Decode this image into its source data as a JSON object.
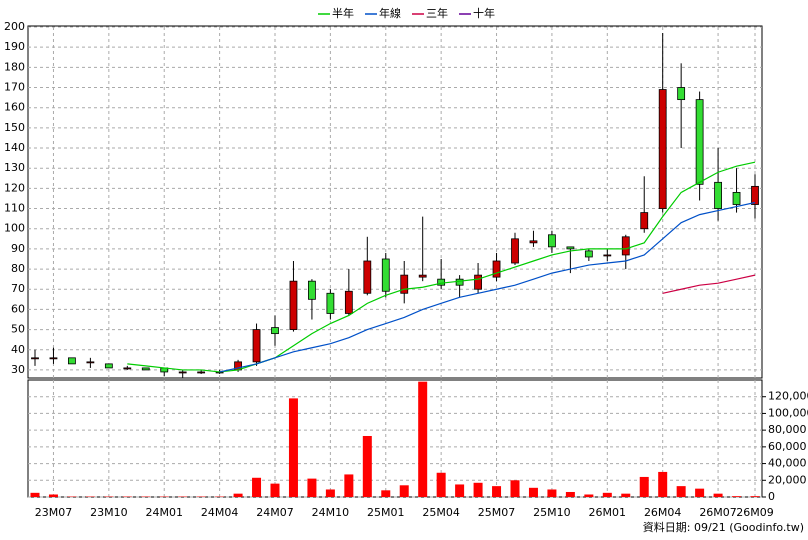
{
  "chart_data": [
    {
      "type": "candlestick",
      "legend": "top",
      "grid": true,
      "up_color": "#cc0000",
      "down_color": "#33dd33",
      "categories": [
        null,
        "23M07",
        null,
        null,
        "23M10",
        null,
        null,
        "24M01",
        null,
        null,
        "24M04",
        null,
        null,
        "24M07",
        null,
        null,
        "24M10",
        null,
        null,
        "25M01",
        null,
        null,
        "25M04",
        null,
        null,
        "25M07",
        null,
        null,
        "25M10",
        null,
        null,
        "26M01",
        null,
        null,
        "26M04",
        null,
        null,
        "26M07",
        null,
        "26M09"
      ],
      "open": [
        36,
        36,
        36,
        34,
        33,
        31,
        31,
        31,
        29,
        29,
        29,
        30,
        34,
        51,
        50,
        74,
        68,
        58,
        68,
        85,
        68,
        76,
        75,
        75,
        70,
        76,
        83,
        93,
        97,
        91,
        89,
        87,
        87,
        100,
        110,
        170,
        164,
        123,
        118,
        112
      ],
      "high": [
        40,
        41,
        36,
        36,
        33,
        32,
        31,
        31,
        30,
        30,
        30,
        35,
        53,
        57,
        84,
        75,
        70,
        80,
        96,
        88,
        84,
        106,
        85,
        77,
        83,
        88,
        98,
        99,
        99,
        91,
        90,
        90,
        97,
        126,
        197,
        182,
        168,
        140,
        130,
        127
      ],
      "low": [
        32,
        33,
        33,
        31,
        31,
        30,
        30,
        27,
        26,
        28,
        28,
        29,
        32,
        42,
        49,
        55,
        55,
        57,
        67,
        66,
        63,
        74,
        70,
        66,
        68,
        74,
        82,
        91,
        88,
        78,
        84,
        84,
        80,
        98,
        108,
        140,
        114,
        104,
        108,
        105
      ],
      "close": [
        36,
        36,
        33,
        34,
        31,
        31,
        30,
        29,
        29,
        29,
        29,
        34,
        50,
        48,
        74,
        65,
        58,
        69,
        84,
        69,
        77,
        77,
        72,
        72,
        77,
        84,
        95,
        94,
        91,
        90,
        86,
        87,
        96,
        108,
        169,
        164,
        122,
        110,
        112,
        121
      ],
      "series": [
        {
          "name": "半年",
          "color": "#00cc00",
          "values": [
            null,
            null,
            null,
            null,
            null,
            33,
            32,
            31,
            30,
            30,
            29,
            30,
            33,
            36,
            42,
            48,
            53,
            57,
            63,
            67,
            70,
            71,
            73,
            74,
            75,
            78,
            81,
            84,
            87,
            89,
            90,
            90,
            90,
            93,
            106,
            118,
            123,
            128,
            131,
            133
          ]
        },
        {
          "name": "年線",
          "color": "#0050c8",
          "values": [
            null,
            null,
            null,
            null,
            null,
            null,
            null,
            null,
            null,
            null,
            29,
            31,
            33,
            36,
            39,
            41,
            43,
            46,
            50,
            53,
            56,
            60,
            63,
            66,
            68,
            70,
            72,
            75,
            78,
            80,
            82,
            83,
            84,
            87,
            95,
            103,
            107,
            109,
            111,
            113
          ]
        },
        {
          "name": "三年",
          "color": "#cc0044",
          "values": [
            null,
            null,
            null,
            null,
            null,
            null,
            null,
            null,
            null,
            null,
            null,
            null,
            null,
            null,
            null,
            null,
            null,
            null,
            null,
            null,
            null,
            null,
            null,
            null,
            null,
            null,
            null,
            null,
            null,
            null,
            null,
            null,
            null,
            null,
            68,
            70,
            72,
            73,
            75,
            77
          ]
        },
        {
          "name": "十年",
          "color": "#660099",
          "values": [
            null,
            null,
            null,
            null,
            null,
            null,
            null,
            null,
            null,
            null,
            null,
            null,
            null,
            null,
            null,
            null,
            null,
            null,
            null,
            null,
            null,
            null,
            null,
            null,
            null,
            null,
            null,
            null,
            null,
            null,
            null,
            null,
            null,
            null,
            null,
            null,
            null,
            null,
            null,
            null
          ]
        }
      ],
      "ylim": [
        26,
        200
      ],
      "yticks": [
        30,
        40,
        50,
        60,
        70,
        80,
        90,
        100,
        110,
        120,
        130,
        140,
        150,
        160,
        170,
        180,
        190,
        200
      ]
    },
    {
      "type": "bar",
      "color": "#ff0000",
      "grid": true,
      "values": [
        5000,
        3000,
        500,
        500,
        500,
        500,
        500,
        500,
        500,
        500,
        500,
        4000,
        23000,
        16000,
        118000,
        22000,
        9000,
        27000,
        73000,
        8000,
        14000,
        138000,
        29000,
        15000,
        17000,
        13000,
        20000,
        11000,
        9000,
        6000,
        3000,
        5000,
        4000,
        24000,
        30000,
        13000,
        10000,
        4000,
        1000,
        1000
      ],
      "ylim": [
        0,
        140000
      ],
      "yticks": [
        0,
        {
          "value": 20000,
          "label": "20,000"
        },
        {
          "value": 40000,
          "label": "40,000"
        },
        {
          "value": 60000,
          "label": "60,000"
        },
        {
          "value": 80000,
          "label": "80,000"
        },
        {
          "value": 100000,
          "label": "100,000"
        },
        {
          "value": 120000,
          "label": "120,000"
        }
      ]
    }
  ],
  "footer": "資料日期: 09/21  (Goodinfo.tw)"
}
